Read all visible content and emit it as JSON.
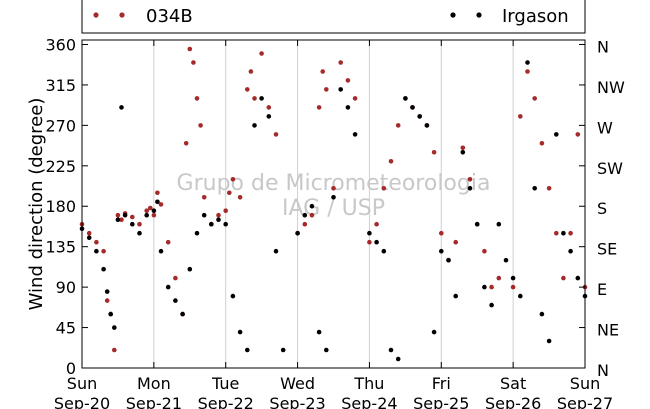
{
  "chart_data": {
    "type": "scatter",
    "title": "",
    "ylabel": "Wind direction (degree)",
    "xlabel": "",
    "ylim": [
      0,
      365
    ],
    "xlim": [
      0,
      7
    ],
    "yticks": [
      0,
      45,
      90,
      135,
      180,
      225,
      270,
      315,
      360
    ],
    "right_axis_labels": [
      "N",
      "NE",
      "E",
      "SE",
      "S",
      "SW",
      "W",
      "NW",
      "N"
    ],
    "x_ticks": [
      {
        "day": "Sun",
        "date": "Sep-20"
      },
      {
        "day": "Mon",
        "date": "Sep-21"
      },
      {
        "day": "Tue",
        "date": "Sep-22"
      },
      {
        "day": "Wed",
        "date": "Sep-23"
      },
      {
        "day": "Thu",
        "date": "Sep-24"
      },
      {
        "day": "Fri",
        "date": "Sep-25"
      },
      {
        "day": "Sat",
        "date": "Sep-26"
      },
      {
        "day": "Sun",
        "date": "Sep-27"
      }
    ],
    "grid": "vertical",
    "legend_position": "top",
    "watermark": [
      "Grupo de Micrometeorologia",
      "IAG / USP"
    ],
    "series": [
      {
        "name": "034B",
        "color": "#a52a2a",
        "points": [
          [
            0.0,
            160
          ],
          [
            0.1,
            150
          ],
          [
            0.2,
            140
          ],
          [
            0.3,
            130
          ],
          [
            0.35,
            75
          ],
          [
            0.4,
            60
          ],
          [
            0.45,
            20
          ],
          [
            0.5,
            170
          ],
          [
            0.55,
            165
          ],
          [
            0.6,
            172
          ],
          [
            0.7,
            168
          ],
          [
            0.8,
            160
          ],
          [
            0.9,
            175
          ],
          [
            0.95,
            178
          ],
          [
            1.0,
            170
          ],
          [
            1.05,
            195
          ],
          [
            1.1,
            182
          ],
          [
            1.2,
            140
          ],
          [
            1.3,
            100
          ],
          [
            1.4,
            60
          ],
          [
            1.45,
            250
          ],
          [
            1.5,
            355
          ],
          [
            1.55,
            340
          ],
          [
            1.6,
            300
          ],
          [
            1.65,
            270
          ],
          [
            1.7,
            190
          ],
          [
            1.8,
            160
          ],
          [
            1.9,
            170
          ],
          [
            2.0,
            175
          ],
          [
            2.05,
            195
          ],
          [
            2.1,
            210
          ],
          [
            2.2,
            190
          ],
          [
            2.3,
            310
          ],
          [
            2.35,
            330
          ],
          [
            2.4,
            300
          ],
          [
            2.5,
            350
          ],
          [
            2.6,
            290
          ],
          [
            2.7,
            260
          ],
          [
            3.0,
            150
          ],
          [
            3.1,
            160
          ],
          [
            3.2,
            170
          ],
          [
            3.3,
            290
          ],
          [
            3.35,
            330
          ],
          [
            3.4,
            310
          ],
          [
            3.5,
            200
          ],
          [
            3.6,
            340
          ],
          [
            3.7,
            320
          ],
          [
            3.8,
            300
          ],
          [
            4.0,
            140
          ],
          [
            4.1,
            160
          ],
          [
            4.2,
            200
          ],
          [
            4.3,
            230
          ],
          [
            4.4,
            270
          ],
          [
            4.5,
            300
          ],
          [
            4.6,
            290
          ],
          [
            4.7,
            280
          ],
          [
            4.8,
            270
          ],
          [
            4.9,
            240
          ],
          [
            5.0,
            150
          ],
          [
            5.1,
            120
          ],
          [
            5.2,
            140
          ],
          [
            5.3,
            245
          ],
          [
            5.4,
            210
          ],
          [
            5.5,
            160
          ],
          [
            5.6,
            130
          ],
          [
            5.7,
            90
          ],
          [
            5.8,
            100
          ],
          [
            6.0,
            90
          ],
          [
            6.1,
            280
          ],
          [
            6.2,
            330
          ],
          [
            6.3,
            300
          ],
          [
            6.4,
            250
          ],
          [
            6.5,
            200
          ],
          [
            6.6,
            150
          ],
          [
            6.7,
            100
          ],
          [
            6.8,
            150
          ],
          [
            6.9,
            260
          ],
          [
            7.0,
            90
          ]
        ]
      },
      {
        "name": "Irgason",
        "color": "#000000",
        "points": [
          [
            0.0,
            155
          ],
          [
            0.1,
            145
          ],
          [
            0.2,
            130
          ],
          [
            0.3,
            110
          ],
          [
            0.35,
            85
          ],
          [
            0.4,
            60
          ],
          [
            0.45,
            45
          ],
          [
            0.5,
            165
          ],
          [
            0.55,
            290
          ],
          [
            0.6,
            170
          ],
          [
            0.7,
            160
          ],
          [
            0.8,
            150
          ],
          [
            0.9,
            170
          ],
          [
            1.0,
            175
          ],
          [
            1.05,
            185
          ],
          [
            1.1,
            130
          ],
          [
            1.2,
            90
          ],
          [
            1.3,
            75
          ],
          [
            1.4,
            60
          ],
          [
            1.5,
            110
          ],
          [
            1.6,
            150
          ],
          [
            1.7,
            170
          ],
          [
            1.8,
            160
          ],
          [
            1.9,
            165
          ],
          [
            2.0,
            160
          ],
          [
            2.1,
            80
          ],
          [
            2.2,
            40
          ],
          [
            2.3,
            20
          ],
          [
            2.4,
            270
          ],
          [
            2.5,
            300
          ],
          [
            2.6,
            280
          ],
          [
            2.7,
            130
          ],
          [
            2.8,
            20
          ],
          [
            3.0,
            150
          ],
          [
            3.1,
            170
          ],
          [
            3.2,
            180
          ],
          [
            3.3,
            40
          ],
          [
            3.4,
            20
          ],
          [
            3.5,
            190
          ],
          [
            3.6,
            310
          ],
          [
            3.7,
            290
          ],
          [
            3.8,
            260
          ],
          [
            4.0,
            150
          ],
          [
            4.1,
            140
          ],
          [
            4.2,
            130
          ],
          [
            4.3,
            20
          ],
          [
            4.4,
            10
          ],
          [
            4.5,
            300
          ],
          [
            4.6,
            290
          ],
          [
            4.7,
            280
          ],
          [
            4.8,
            270
          ],
          [
            4.9,
            40
          ],
          [
            5.0,
            130
          ],
          [
            5.1,
            120
          ],
          [
            5.2,
            80
          ],
          [
            5.3,
            240
          ],
          [
            5.4,
            200
          ],
          [
            5.5,
            160
          ],
          [
            5.6,
            90
          ],
          [
            5.7,
            70
          ],
          [
            5.8,
            160
          ],
          [
            5.9,
            120
          ],
          [
            6.0,
            100
          ],
          [
            6.1,
            80
          ],
          [
            6.2,
            340
          ],
          [
            6.3,
            200
          ],
          [
            6.4,
            60
          ],
          [
            6.5,
            30
          ],
          [
            6.6,
            260
          ],
          [
            6.7,
            150
          ],
          [
            6.8,
            130
          ],
          [
            6.9,
            100
          ],
          [
            7.0,
            80
          ]
        ]
      }
    ]
  }
}
